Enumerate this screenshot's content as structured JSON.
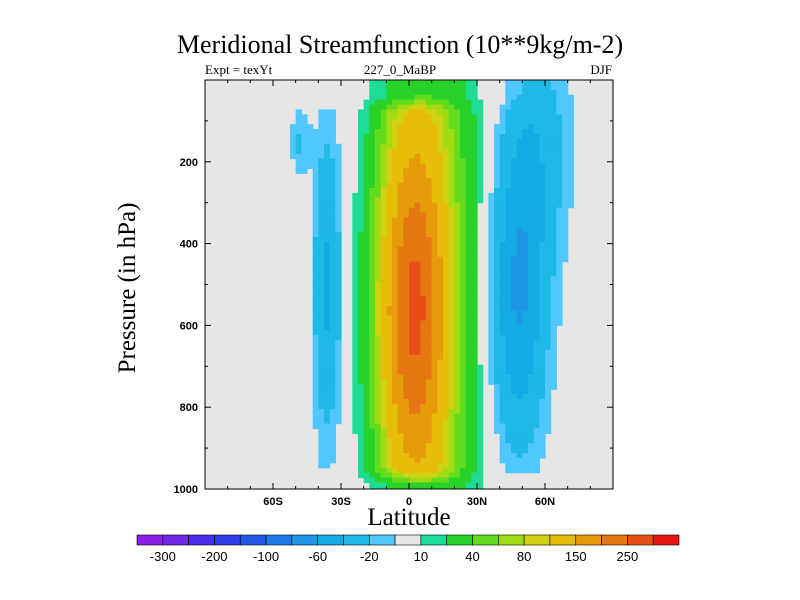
{
  "chart_data": {
    "type": "heatmap",
    "title": "Meridional Streamfunction (10**9kg/m-2)",
    "left_string": "Expt = texYt",
    "center_string": "227_0_MaBP",
    "right_string": "DJF",
    "xlabel": "Latitude",
    "ylabel": "Pressure (in hPa)",
    "xlim": [
      -90,
      90
    ],
    "ylim": [
      1000,
      0
    ],
    "x_ticks": [
      {
        "value": -60,
        "label": "60S"
      },
      {
        "value": -30,
        "label": "30S"
      },
      {
        "value": 0,
        "label": "0"
      },
      {
        "value": 30,
        "label": "30N"
      },
      {
        "value": 60,
        "label": "60N"
      }
    ],
    "y_ticks": [
      {
        "value": 200,
        "label": "200"
      },
      {
        "value": 400,
        "label": "400"
      },
      {
        "value": 600,
        "label": "600"
      },
      {
        "value": 800,
        "label": "800"
      },
      {
        "value": 1000,
        "label": "1000"
      }
    ],
    "background_color": "#e6e6e6",
    "contour_levels": [
      -300,
      -250,
      -200,
      -150,
      -100,
      -80,
      -60,
      -40,
      -20,
      -10,
      10,
      20,
      40,
      60,
      80,
      100,
      150,
      200,
      250,
      300
    ],
    "colorbar_labels": [
      "-300",
      "-200",
      "-100",
      "-60",
      "-20",
      "10",
      "40",
      "80",
      "150",
      "250"
    ],
    "colorbar_colors": [
      "#8c1ee6",
      "#6e28e6",
      "#4b2de6",
      "#2d3ce6",
      "#1e5ae6",
      "#1e78e6",
      "#1e96e6",
      "#14aae6",
      "#1eb9e6",
      "#50c8ff",
      "#e6e6e6",
      "#1edc96",
      "#28d228",
      "#64dc1e",
      "#a0dc14",
      "#d2d214",
      "#e6be0a",
      "#e69b0a",
      "#e67814",
      "#e65014",
      "#e61414"
    ],
    "regions": [
      {
        "kind": "positive",
        "center_lat": 5,
        "peak": 200,
        "core_lat": 0,
        "core_pressure": 650
      },
      {
        "kind": "negative",
        "center_lat": -36,
        "peak": -40
      },
      {
        "kind": "negative",
        "center_lat": 48,
        "peak": -60,
        "core_pressure": 600
      }
    ]
  }
}
